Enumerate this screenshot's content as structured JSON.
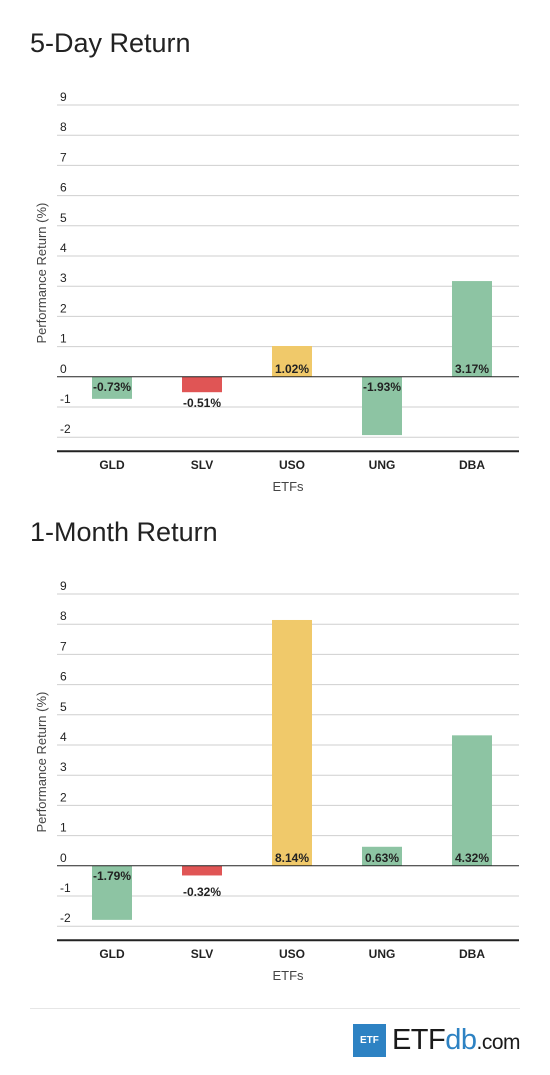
{
  "charts": {
    "day5_title": "5-Day Return",
    "month1_title": "1-Month Return"
  },
  "colors": {
    "green": "#8dc4a3",
    "red": "#e05555",
    "yellow": "#f0c96a"
  },
  "chart_data": [
    {
      "type": "bar",
      "title": "5-Day Return",
      "categories": [
        "GLD",
        "SLV",
        "USO",
        "UNG",
        "DBA"
      ],
      "values": [
        -0.73,
        -0.51,
        1.02,
        -1.93,
        3.17
      ],
      "labels": [
        "-0.73%",
        "-0.51%",
        "1.02%",
        "-1.93%",
        "3.17%"
      ],
      "colors": [
        "#8dc4a3",
        "#e05555",
        "#f0c96a",
        "#8dc4a3",
        "#8dc4a3"
      ],
      "xlabel": "ETFs",
      "ylabel": "Performance Return (%)",
      "ylim": [
        -2,
        9
      ],
      "yticks": [
        "-2",
        "-1",
        "0",
        "1",
        "2",
        "3",
        "4",
        "5",
        "6",
        "7",
        "8",
        "9"
      ],
      "grid": true
    },
    {
      "type": "bar",
      "title": "1-Month Return",
      "categories": [
        "GLD",
        "SLV",
        "USO",
        "UNG",
        "DBA"
      ],
      "values": [
        -1.79,
        -0.32,
        8.14,
        0.63,
        4.32
      ],
      "labels": [
        "-1.79%",
        "-0.32%",
        "8.14%",
        "0.63%",
        "4.32%"
      ],
      "colors": [
        "#8dc4a3",
        "#e05555",
        "#f0c96a",
        "#8dc4a3",
        "#8dc4a3"
      ],
      "xlabel": "ETFs",
      "ylabel": "Performance Return (%)",
      "ylim": [
        -2,
        9
      ],
      "yticks": [
        "-2",
        "-1",
        "0",
        "1",
        "2",
        "3",
        "4",
        "5",
        "6",
        "7",
        "8",
        "9"
      ],
      "grid": true
    }
  ],
  "footer": {
    "logo_box": "ETF",
    "logo_etf": "ETF",
    "logo_db": "db",
    "logo_com": ".com"
  }
}
